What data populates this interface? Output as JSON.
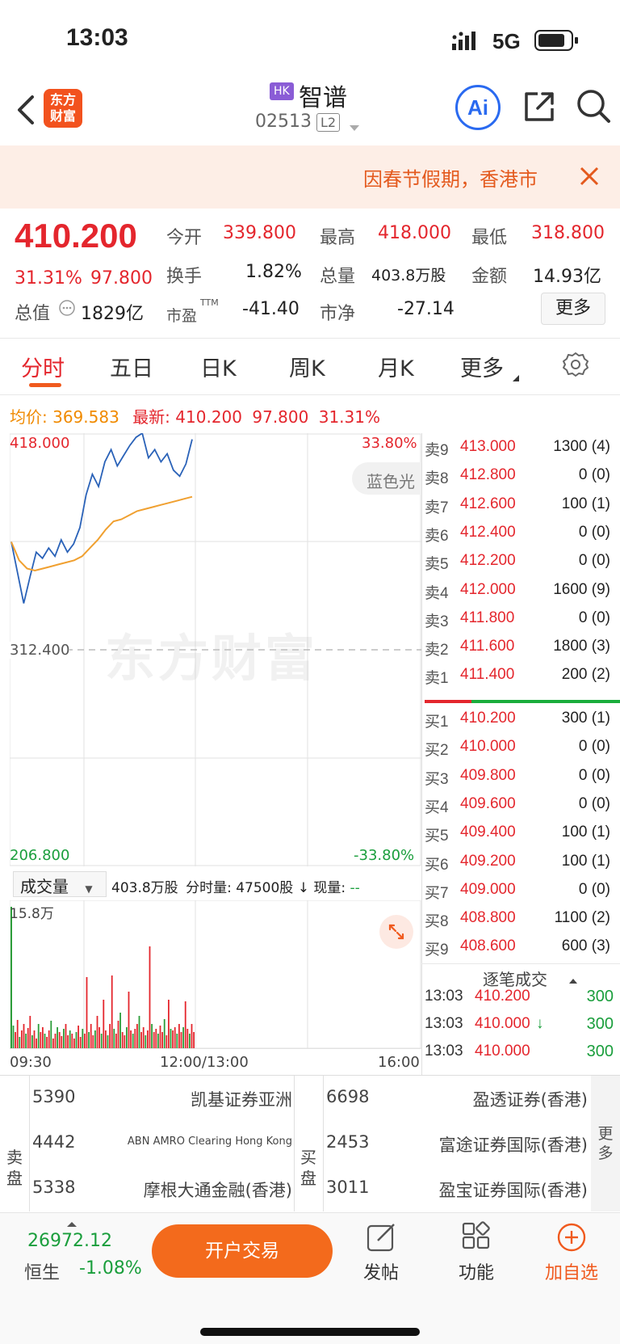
{
  "status_bar": {
    "time": "13:03",
    "network": "5G"
  },
  "header": {
    "market_badge": "HK",
    "stock_name": "智谱",
    "stock_code": "02513",
    "level": "L2",
    "logo_text_1": "东方",
    "logo_text_2": "财富",
    "ai_label": "Ai"
  },
  "banner": {
    "text": "因春节假期，香港市"
  },
  "quote": {
    "price": "410.200",
    "change_pct": "31.31%",
    "change": "97.800",
    "open_label": "今开",
    "open": "339.800",
    "high_label": "最高",
    "high": "418.000",
    "low_label": "最低",
    "low": "318.800",
    "turnover_label": "换手",
    "turnover": "1.82%",
    "volume_label": "总量",
    "volume": "403.8万股",
    "amount_label": "金额",
    "amount": "14.93亿",
    "mktcap_label": "总值",
    "mktcap": "1829亿",
    "pe_label": "市盈",
    "pe_sup": "TTM",
    "pe": "-41.40",
    "pb_label": "市净",
    "pb": "-27.14",
    "more_label": "更多"
  },
  "tabs": [
    "分时",
    "五日",
    "日K",
    "周K",
    "月K",
    "更多"
  ],
  "chart_info": {
    "avg_label": "均价:",
    "avg": "369.583",
    "latest_label": "最新:",
    "latest": "410.200",
    "latest_change": "97.800",
    "latest_pct": "31.31%",
    "y_top": "418.000",
    "y_mid": "312.400",
    "y_bottom": "206.800",
    "pct_top": "33.80%",
    "pct_bottom": "-33.80%",
    "side_label": "蓝色光",
    "watermark": "东方财富",
    "vol_selector": "成交量",
    "vol_total": "403.8万股",
    "vol_min_label": "分时量:",
    "vol_min": "47500股",
    "vol_now_label": "现量:",
    "vol_now": "--",
    "vol_max": "15.8万",
    "time_start": "09:30",
    "time_mid": "12:00/13:00",
    "time_end": "16:00"
  },
  "chart_data": {
    "type": "line",
    "series": [
      {
        "values": [
          365,
          350,
          335,
          348,
          360,
          357,
          362,
          358,
          366,
          360,
          364,
          372,
          388,
          398,
          392,
          404,
          410,
          402,
          407,
          412,
          416,
          418,
          406,
          410,
          404,
          408,
          400,
          397,
          403,
          415
        ]
      },
      {
        "values": [
          365,
          356,
          352,
          351,
          352,
          353,
          354,
          355,
          356,
          358,
          362,
          366,
          371,
          375,
          376,
          378,
          380,
          381,
          382,
          383,
          384,
          385,
          386,
          387
        ]
      }
    ],
    "ylim": [
      206.8,
      418.0
    ]
  },
  "sell_orders": [
    {
      "label": "卖9",
      "price": "413.000",
      "qty": "1300 (4)"
    },
    {
      "label": "卖8",
      "price": "412.800",
      "qty": "0 (0)"
    },
    {
      "label": "卖7",
      "price": "412.600",
      "qty": "100 (1)"
    },
    {
      "label": "卖6",
      "price": "412.400",
      "qty": "0 (0)"
    },
    {
      "label": "卖5",
      "price": "412.200",
      "qty": "0 (0)"
    },
    {
      "label": "卖4",
      "price": "412.000",
      "qty": "1600 (9)"
    },
    {
      "label": "卖3",
      "price": "411.800",
      "qty": "0 (0)"
    },
    {
      "label": "卖2",
      "price": "411.600",
      "qty": "1800 (3)"
    },
    {
      "label": "卖1",
      "price": "411.400",
      "qty": "200 (2)"
    }
  ],
  "buy_orders": [
    {
      "label": "买1",
      "price": "410.200",
      "qty": "300 (1)"
    },
    {
      "label": "买2",
      "price": "410.000",
      "qty": "0 (0)"
    },
    {
      "label": "买3",
      "price": "409.800",
      "qty": "0 (0)"
    },
    {
      "label": "买4",
      "price": "409.600",
      "qty": "0 (0)"
    },
    {
      "label": "买5",
      "price": "409.400",
      "qty": "100 (1)"
    },
    {
      "label": "买6",
      "price": "409.200",
      "qty": "100 (1)"
    },
    {
      "label": "买7",
      "price": "409.000",
      "qty": "0 (0)"
    },
    {
      "label": "买8",
      "price": "408.800",
      "qty": "1100 (2)"
    },
    {
      "label": "买9",
      "price": "408.600",
      "qty": "600 (3)"
    }
  ],
  "ticks": {
    "title": "逐笔成交",
    "rows": [
      {
        "time": "13:03",
        "price": "410.200",
        "vol": "300",
        "arrow": ""
      },
      {
        "time": "13:03",
        "price": "410.000",
        "vol": "300",
        "arrow": "↓"
      },
      {
        "time": "13:03",
        "price": "410.000",
        "vol": "300",
        "arrow": ""
      }
    ]
  },
  "brokers": {
    "sell_label_1": "卖",
    "sell_label_2": "盘",
    "buy_label_1": "买",
    "buy_label_2": "盘",
    "more_1": "更",
    "more_2": "多",
    "sell": [
      {
        "code": "5390",
        "name": "凯基证券亚洲"
      },
      {
        "code": "4442",
        "name": "ABN AMRO Clearing Hong Kong"
      },
      {
        "code": "5338",
        "name": "摩根大通金融(香港)"
      }
    ],
    "buy": [
      {
        "code": "6698",
        "name": "盈透证券(香港)"
      },
      {
        "code": "2453",
        "name": "富途证券国际(香港)"
      },
      {
        "code": "3011",
        "name": "盈宝证券国际(香港)"
      }
    ]
  },
  "bottom": {
    "index_value": "26972.12",
    "index_name": "恒生",
    "index_pct": "-1.08%",
    "trade_button": "开户交易",
    "post_label": "发帖",
    "function_label": "功能",
    "watch_label": "加自选"
  }
}
